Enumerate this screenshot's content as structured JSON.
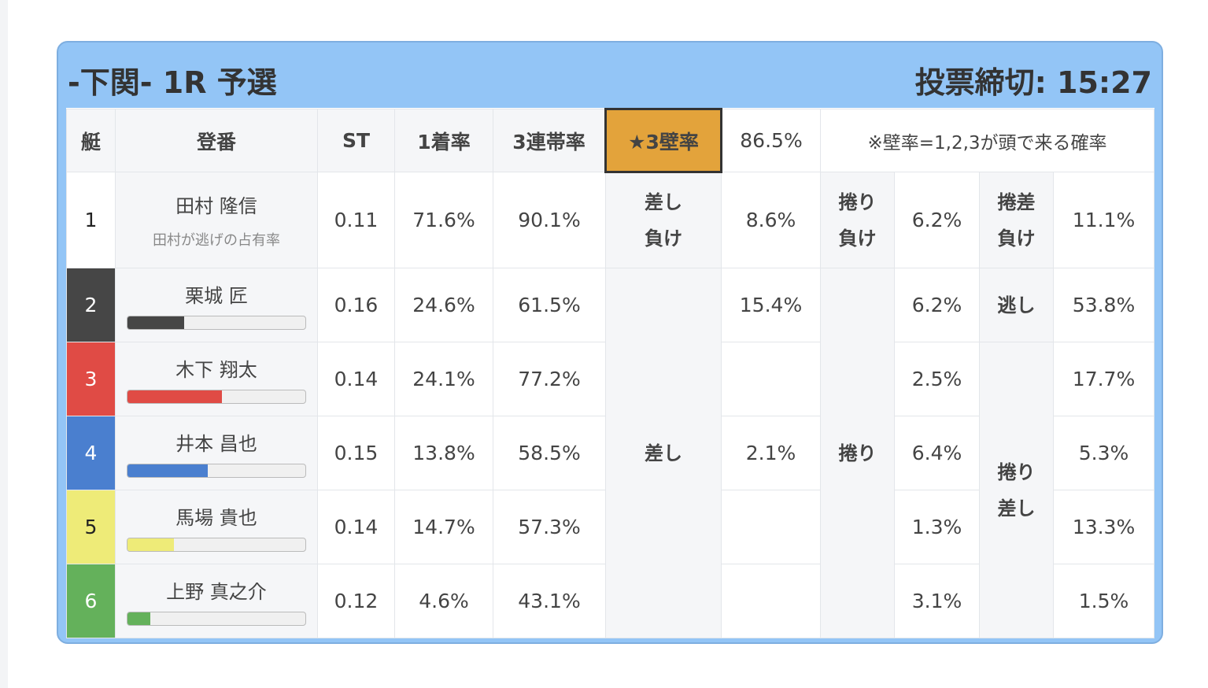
{
  "header": {
    "title": "-下関- 1R 予選",
    "deadline": "投票締切: 15:27"
  },
  "table": {
    "columns": [
      "艇",
      "登番",
      "ST",
      "1着率",
      "3連帯率",
      "★3壁率"
    ],
    "wall_rate": "86.5%",
    "note": "※壁率=1,2,3が頭で来る確率",
    "labels": {
      "sashi_lose": [
        "差し",
        "負け"
      ],
      "makuri_lose": [
        "捲り",
        "負け"
      ],
      "makurisashi_lose": [
        "捲差",
        "負け"
      ],
      "sashi": "差し",
      "makuri": "捲り",
      "nige": "逃し",
      "makurisashi": [
        "捲り",
        "差し"
      ]
    },
    "rows": [
      {
        "boat": "1",
        "color": "#ffffff",
        "name": "田村 隆信",
        "sub": "田村が逃げの占有率",
        "gauge": null,
        "st": "0.11",
        "win": "71.6%",
        "top3": "90.1%",
        "sashi": "8.6%",
        "makuri": "6.2%",
        "makurisashi": "11.1%"
      },
      {
        "boat": "2",
        "color": "#464646",
        "name": "栗城 匠",
        "sub": null,
        "gauge": 32,
        "st": "0.16",
        "win": "24.6%",
        "top3": "61.5%",
        "sashi": "15.4%",
        "makuri": "6.2%",
        "makurisashi": "53.8%"
      },
      {
        "boat": "3",
        "color": "#e04b45",
        "name": "木下 翔太",
        "sub": null,
        "gauge": 53,
        "st": "0.14",
        "win": "24.1%",
        "top3": "77.2%",
        "sashi": null,
        "makuri": "2.5%",
        "makurisashi": "17.7%"
      },
      {
        "boat": "4",
        "color": "#4a7fcf",
        "name": "井本 昌也",
        "sub": null,
        "gauge": 45,
        "st": "0.15",
        "win": "13.8%",
        "top3": "58.5%",
        "sashi": "2.1%",
        "makuri": "6.4%",
        "makurisashi": "5.3%"
      },
      {
        "boat": "5",
        "color": "#eeeb78",
        "name": "馬場 貴也",
        "sub": null,
        "gauge": 26,
        "st": "0.14",
        "win": "14.7%",
        "top3": "57.3%",
        "sashi": null,
        "makuri": "1.3%",
        "makurisashi": "13.3%"
      },
      {
        "boat": "6",
        "color": "#64b15b",
        "name": "上野 真之介",
        "sub": null,
        "gauge": 13,
        "st": "0.12",
        "win": "4.6%",
        "top3": "43.1%",
        "sashi": null,
        "makuri": "3.1%",
        "makurisashi": "1.5%"
      }
    ]
  }
}
